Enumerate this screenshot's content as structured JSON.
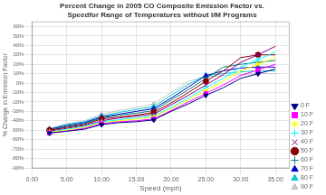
{
  "chart_data": {
    "type": "line",
    "title": "Percent Change in 2005 CO Composite Emission Factor vs.\nSpeedfor Range of Temperatures without I/M Programs",
    "x_label": "Speed (mph)",
    "y_label": "% Change in Emission Factor",
    "x": [
      2.5,
      5.0,
      7.5,
      10.0,
      12.5,
      15.0,
      17.5,
      20.0,
      22.5,
      25.0,
      27.5,
      30.0,
      32.5,
      35.0
    ],
    "xlim": [
      0,
      37
    ],
    "xticks": [
      {
        "value": 0,
        "label": "0.00"
      },
      {
        "value": 5,
        "label": "5.00"
      },
      {
        "value": 10,
        "label": "10.00"
      },
      {
        "value": 15,
        "label": "15.00"
      },
      {
        "value": 20,
        "label": "20.00"
      },
      {
        "value": 25,
        "label": "25.00"
      },
      {
        "value": 30,
        "label": "30.00"
      },
      {
        "value": 35,
        "label": "35.00"
      }
    ],
    "ylim": [
      -90,
      65
    ],
    "yticks": [
      {
        "value": -90,
        "label": "-90%"
      },
      {
        "value": -80,
        "label": "-80%"
      },
      {
        "value": -70,
        "label": "-70%"
      },
      {
        "value": -60,
        "label": "-60%"
      },
      {
        "value": -50,
        "label": "-50%"
      },
      {
        "value": -40,
        "label": "-40%"
      },
      {
        "value": -30,
        "label": "-30%"
      },
      {
        "value": -20,
        "label": "-20%"
      },
      {
        "value": -10,
        "label": "-10%"
      },
      {
        "value": 0,
        "label": "0%"
      },
      {
        "value": 10,
        "label": "10%"
      },
      {
        "value": 20,
        "label": "20%"
      },
      {
        "value": 30,
        "label": "30%"
      },
      {
        "value": 40,
        "label": "40%"
      },
      {
        "value": 50,
        "label": "50%"
      },
      {
        "value": 60,
        "label": "60%"
      }
    ],
    "grid": true,
    "legend": "lower right",
    "series": [
      {
        "name": "0 F",
        "color": "#00008B",
        "marker": "triangle-down",
        "values": [
          -53,
          -51,
          -49,
          -44,
          -42,
          -41,
          -39,
          -30,
          -22,
          -13,
          -5,
          5,
          10,
          15
        ]
      },
      {
        "name": "10 F",
        "color": "#FF00FF",
        "marker": "square",
        "values": [
          -53,
          -51,
          -48,
          -43,
          -41,
          -40,
          -38,
          -29,
          -20,
          -11,
          -2,
          8,
          14,
          20
        ]
      },
      {
        "name": "20 F",
        "color": "#FFFF00",
        "marker": "star",
        "values": [
          -52,
          -50,
          -47,
          -42,
          -40,
          -38,
          -36,
          -27,
          -18,
          -8,
          2,
          13,
          20,
          27
        ]
      },
      {
        "name": "30 F",
        "color": "#00FFFF",
        "marker": "plus",
        "values": [
          -52,
          -49,
          -46,
          -41,
          -39,
          -37,
          -35,
          -26,
          -16,
          -5,
          5,
          17,
          25,
          33
        ]
      },
      {
        "name": "40 F",
        "color": "#800080",
        "marker": "x",
        "values": [
          -51,
          -48,
          -45,
          -40,
          -37,
          -35,
          -33,
          -23,
          -13,
          -2,
          9,
          22,
          30,
          39
        ]
      },
      {
        "name": "50 F",
        "color": "#8B0000",
        "marker": "circle",
        "values": [
          -50,
          -47,
          -44,
          -38,
          -36,
          -34,
          -31,
          -21,
          -10,
          2,
          13,
          27,
          30,
          30
        ]
      },
      {
        "name": "60 F",
        "color": "#008080",
        "marker": "plus",
        "values": [
          -50,
          -46,
          -43,
          -37,
          -34,
          -32,
          -29,
          -18,
          -7,
          5,
          17,
          20,
          22,
          24
        ]
      },
      {
        "name": "70 F",
        "color": "#0000CD",
        "marker": "triangle",
        "values": [
          -49,
          -45,
          -42,
          -36,
          -33,
          -30,
          -27,
          -16,
          -4,
          8,
          13,
          16,
          17,
          17
        ]
      },
      {
        "name": "80 F",
        "color": "#00CED1",
        "marker": "triangle",
        "values": [
          -49,
          -44,
          -41,
          -35,
          -31,
          -28,
          -25,
          -13,
          -1,
          8,
          10,
          12,
          13,
          13
        ]
      },
      {
        "name": "90 F",
        "color": "#C8C8C8",
        "marker": "triangle",
        "values": [
          -48,
          -43,
          -40,
          -33,
          -29,
          -26,
          -22,
          -10,
          2,
          7,
          8,
          9,
          10,
          10
        ]
      }
    ]
  }
}
